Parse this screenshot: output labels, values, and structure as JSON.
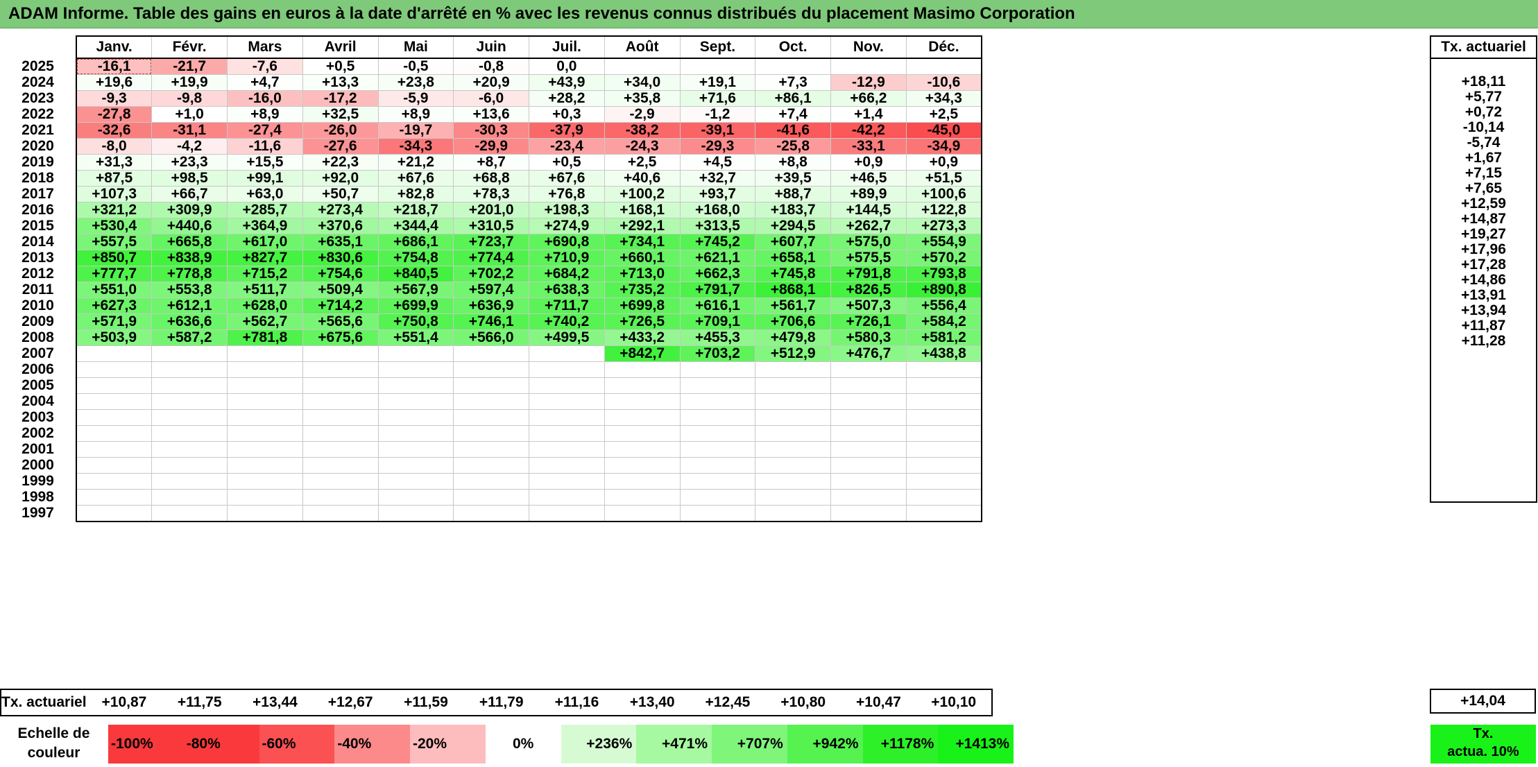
{
  "title": "ADAM Informe. Table des gains en euros à la date d'arrêté en % avec les revenus connus distribués du placement Masimo Corporation",
  "months": [
    "Janv.",
    "Févr.",
    "Mars",
    "Avril",
    "Mai",
    "Juin",
    "Juil.",
    "Août",
    "Sept.",
    "Oct.",
    "Nov.",
    "Déc."
  ],
  "side_header": "Tx. actuariel",
  "rows": [
    {
      "year": "2025",
      "values": [
        "-16,1",
        "-21,7",
        "-7,6",
        "+0,5",
        "-0,5",
        "-0,8",
        "0,0",
        "",
        "",
        "",
        "",
        ""
      ],
      "tx": ""
    },
    {
      "year": "2024",
      "values": [
        "+19,6",
        "+19,9",
        "+4,7",
        "+13,3",
        "+23,8",
        "+20,9",
        "+43,9",
        "+34,0",
        "+19,1",
        "+7,3",
        "-12,9",
        "-10,6"
      ],
      "tx": "+18,11"
    },
    {
      "year": "2023",
      "values": [
        "-9,3",
        "-9,8",
        "-16,0",
        "-17,2",
        "-5,9",
        "-6,0",
        "+28,2",
        "+35,8",
        "+71,6",
        "+86,1",
        "+66,2",
        "+34,3"
      ],
      "tx": "+5,77"
    },
    {
      "year": "2022",
      "values": [
        "-27,8",
        "+1,0",
        "+8,9",
        "+32,5",
        "+8,9",
        "+13,6",
        "+0,3",
        "-2,9",
        "-1,2",
        "+7,4",
        "+1,4",
        "+2,5"
      ],
      "tx": "+0,72"
    },
    {
      "year": "2021",
      "values": [
        "-32,6",
        "-31,1",
        "-27,4",
        "-26,0",
        "-19,7",
        "-30,3",
        "-37,9",
        "-38,2",
        "-39,1",
        "-41,6",
        "-42,2",
        "-45,0"
      ],
      "tx": "-10,14"
    },
    {
      "year": "2020",
      "values": [
        "-8,0",
        "-4,2",
        "-11,6",
        "-27,6",
        "-34,3",
        "-29,9",
        "-23,4",
        "-24,3",
        "-29,3",
        "-25,8",
        "-33,1",
        "-34,9"
      ],
      "tx": "-5,74"
    },
    {
      "year": "2019",
      "values": [
        "+31,3",
        "+23,3",
        "+15,5",
        "+22,3",
        "+21,2",
        "+8,7",
        "+0,5",
        "+2,5",
        "+4,5",
        "+8,8",
        "+0,9",
        "+0,9"
      ],
      "tx": "+1,67"
    },
    {
      "year": "2018",
      "values": [
        "+87,5",
        "+98,5",
        "+99,1",
        "+92,0",
        "+67,6",
        "+68,8",
        "+67,6",
        "+40,6",
        "+32,7",
        "+39,5",
        "+46,5",
        "+51,5"
      ],
      "tx": "+7,15"
    },
    {
      "year": "2017",
      "values": [
        "+107,3",
        "+66,7",
        "+63,0",
        "+50,7",
        "+82,8",
        "+78,3",
        "+76,8",
        "+100,2",
        "+93,7",
        "+88,7",
        "+89,9",
        "+100,6"
      ],
      "tx": "+7,65"
    },
    {
      "year": "2016",
      "values": [
        "+321,2",
        "+309,9",
        "+285,7",
        "+273,4",
        "+218,7",
        "+201,0",
        "+198,3",
        "+168,1",
        "+168,0",
        "+183,7",
        "+144,5",
        "+122,8"
      ],
      "tx": "+12,59"
    },
    {
      "year": "2015",
      "values": [
        "+530,4",
        "+440,6",
        "+364,9",
        "+370,6",
        "+344,4",
        "+310,5",
        "+274,9",
        "+292,1",
        "+313,5",
        "+294,5",
        "+262,7",
        "+273,3"
      ],
      "tx": "+14,87"
    },
    {
      "year": "2014",
      "values": [
        "+557,5",
        "+665,8",
        "+617,0",
        "+635,1",
        "+686,1",
        "+723,7",
        "+690,8",
        "+734,1",
        "+745,2",
        "+607,7",
        "+575,0",
        "+554,9"
      ],
      "tx": "+19,27"
    },
    {
      "year": "2013",
      "values": [
        "+850,7",
        "+838,9",
        "+827,7",
        "+830,6",
        "+754,8",
        "+774,4",
        "+710,9",
        "+660,1",
        "+621,1",
        "+658,1",
        "+575,5",
        "+570,2"
      ],
      "tx": "+17,96"
    },
    {
      "year": "2012",
      "values": [
        "+777,7",
        "+778,8",
        "+715,2",
        "+754,6",
        "+840,5",
        "+702,2",
        "+684,2",
        "+713,0",
        "+662,3",
        "+745,8",
        "+791,8",
        "+793,8"
      ],
      "tx": "+17,28"
    },
    {
      "year": "2011",
      "values": [
        "+551,0",
        "+553,8",
        "+511,7",
        "+509,4",
        "+567,9",
        "+597,4",
        "+638,3",
        "+735,2",
        "+791,7",
        "+868,1",
        "+826,5",
        "+890,8"
      ],
      "tx": "+14,86"
    },
    {
      "year": "2010",
      "values": [
        "+627,3",
        "+612,1",
        "+628,0",
        "+714,2",
        "+699,9",
        "+636,9",
        "+711,7",
        "+699,8",
        "+616,1",
        "+561,7",
        "+507,3",
        "+556,4"
      ],
      "tx": "+13,91"
    },
    {
      "year": "2009",
      "values": [
        "+571,9",
        "+636,6",
        "+562,7",
        "+565,6",
        "+750,8",
        "+746,1",
        "+740,2",
        "+726,5",
        "+709,1",
        "+706,6",
        "+726,1",
        "+584,2"
      ],
      "tx": "+13,94"
    },
    {
      "year": "2008",
      "values": [
        "+503,9",
        "+587,2",
        "+781,8",
        "+675,6",
        "+551,4",
        "+566,0",
        "+499,5",
        "+433,2",
        "+455,3",
        "+479,8",
        "+580,3",
        "+581,2"
      ],
      "tx": "+11,87"
    },
    {
      "year": "2007",
      "values": [
        "",
        "",
        "",
        "",
        "",
        "",
        "",
        "+842,7",
        "+703,2",
        "+512,9",
        "+476,7",
        "+438,8"
      ],
      "tx": "+11,28"
    },
    {
      "year": "2006",
      "values": [
        "",
        "",
        "",
        "",
        "",
        "",
        "",
        "",
        "",
        "",
        "",
        ""
      ],
      "tx": ""
    },
    {
      "year": "2005",
      "values": [
        "",
        "",
        "",
        "",
        "",
        "",
        "",
        "",
        "",
        "",
        "",
        ""
      ],
      "tx": ""
    },
    {
      "year": "2004",
      "values": [
        "",
        "",
        "",
        "",
        "",
        "",
        "",
        "",
        "",
        "",
        "",
        ""
      ],
      "tx": ""
    },
    {
      "year": "2003",
      "values": [
        "",
        "",
        "",
        "",
        "",
        "",
        "",
        "",
        "",
        "",
        "",
        ""
      ],
      "tx": ""
    },
    {
      "year": "2002",
      "values": [
        "",
        "",
        "",
        "",
        "",
        "",
        "",
        "",
        "",
        "",
        "",
        ""
      ],
      "tx": ""
    },
    {
      "year": "2001",
      "values": [
        "",
        "",
        "",
        "",
        "",
        "",
        "",
        "",
        "",
        "",
        "",
        ""
      ],
      "tx": ""
    },
    {
      "year": "2000",
      "values": [
        "",
        "",
        "",
        "",
        "",
        "",
        "",
        "",
        "",
        "",
        "",
        ""
      ],
      "tx": ""
    },
    {
      "year": "1999",
      "values": [
        "",
        "",
        "",
        "",
        "",
        "",
        "",
        "",
        "",
        "",
        "",
        ""
      ],
      "tx": ""
    },
    {
      "year": "1998",
      "values": [
        "",
        "",
        "",
        "",
        "",
        "",
        "",
        "",
        "",
        "",
        "",
        ""
      ],
      "tx": ""
    },
    {
      "year": "1997",
      "values": [
        "",
        "",
        "",
        "",
        "",
        "",
        "",
        "",
        "",
        "",
        "",
        ""
      ],
      "tx": ""
    }
  ],
  "tx_row": {
    "label": "Tx. actuariel",
    "values": [
      "+10,87",
      "+11,75",
      "+13,44",
      "+12,67",
      "+11,59",
      "+11,79",
      "+11,16",
      "+13,40",
      "+12,45",
      "+10,80",
      "+10,47",
      "+10,10"
    ],
    "overall": "+14,04"
  },
  "scale": {
    "label_line1": "Echelle de",
    "label_line2": "couleur",
    "items": [
      {
        "label": "-100%",
        "color": "#f9393b"
      },
      {
        "label": "-80%",
        "color": "#f9393b"
      },
      {
        "label": "-60%",
        "color": "#fb5153"
      },
      {
        "label": "-40%",
        "color": "#fc8a8b"
      },
      {
        "label": "-20%",
        "color": "#fdbdbe"
      },
      {
        "label": "0%",
        "color": "#ffffff"
      },
      {
        "label": "+236%",
        "color": "#d6fbd3"
      },
      {
        "label": "+471%",
        "color": "#a6f8a1"
      },
      {
        "label": "+707%",
        "color": "#7ff57a"
      },
      {
        "label": "+942%",
        "color": "#55f250"
      },
      {
        "label": "+1178%",
        "color": "#2ef029"
      },
      {
        "label": "+1413%",
        "color": "#19f219"
      }
    ],
    "side_line1": "Tx.",
    "side_line2": "actua. 10%",
    "side_color": "#19f219"
  }
}
